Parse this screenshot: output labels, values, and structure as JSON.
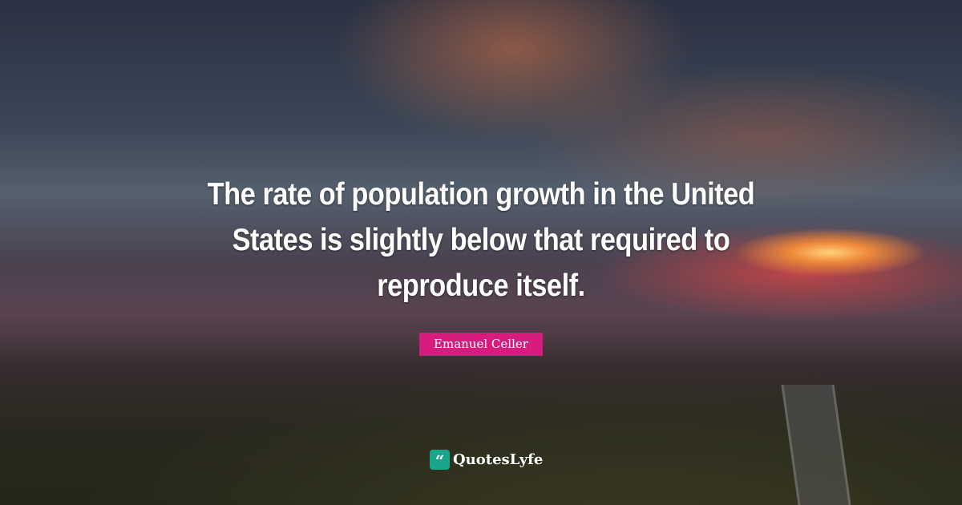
{
  "quote": {
    "text": "The rate of population growth in the United States is slightly below that required to reproduce itself."
  },
  "author": {
    "name": "Emanuel Celler"
  },
  "brand": {
    "name": "QuotesLyfe",
    "icon": "quote-marks-icon",
    "icon_glyph": "“"
  },
  "colors": {
    "author_badge": "#d81b7e",
    "logo": "#19a589"
  }
}
